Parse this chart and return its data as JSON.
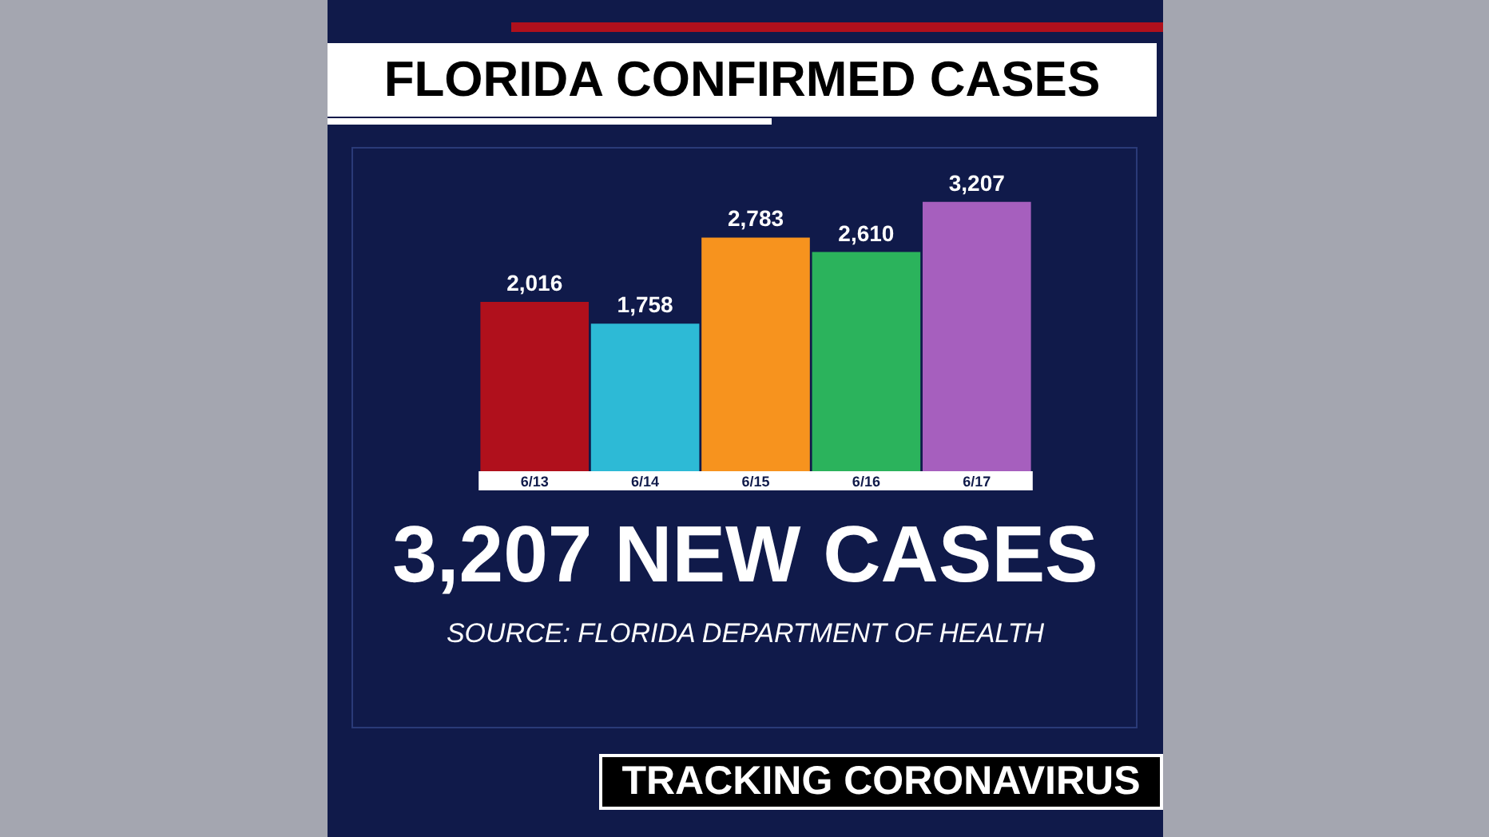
{
  "chart_data": {
    "type": "bar",
    "title": "FLORIDA CONFIRMED CASES",
    "categories": [
      "6/13",
      "6/14",
      "6/15",
      "6/16",
      "6/17"
    ],
    "values": [
      2016,
      1758,
      2783,
      2610,
      3207
    ],
    "colors": [
      "#b0101c",
      "#2dbad6",
      "#f7931e",
      "#2bb35c",
      "#a65fbe"
    ],
    "value_labels": [
      "2,016",
      "1,758",
      "2,783",
      "2,610",
      "3,207"
    ],
    "annotations": [
      "3,207 NEW CASES",
      "SOURCE: FLORIDA DEPARTMENT OF HEALTH",
      "TRACKING CORONAVIRUS"
    ]
  }
}
